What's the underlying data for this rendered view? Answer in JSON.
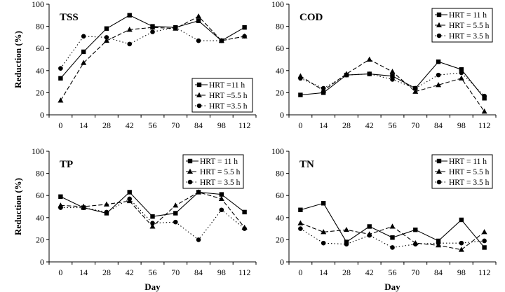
{
  "figure": {
    "x_axis_label": "Day",
    "y_axis_label": "Reduction (%)"
  },
  "chart_data": [
    {
      "type": "line",
      "title": "TSS",
      "xlabel": "",
      "ylabel": "Reduction (%)",
      "categories": [
        "0",
        "14",
        "28",
        "42",
        "56",
        "70",
        "84",
        "98",
        "112"
      ],
      "ylim": [
        0,
        100
      ],
      "yticks": [
        0,
        20,
        40,
        60,
        80,
        100
      ],
      "legend_position": "bottom-right",
      "series": [
        {
          "name": "HRT =11 h",
          "marker": "square",
          "dash": "solid",
          "values": [
            33,
            57,
            78,
            90,
            80,
            79,
            85,
            67,
            79
          ]
        },
        {
          "name": "HRT =5.5 h",
          "marker": "triangle",
          "dash": "dashed",
          "values": [
            13,
            47,
            67,
            77,
            79,
            78,
            89,
            67,
            71
          ]
        },
        {
          "name": "HRT =3.5 h",
          "marker": "circle",
          "dash": "dotted",
          "values": [
            42,
            71,
            70,
            64,
            75,
            79,
            67,
            67,
            71
          ]
        }
      ]
    },
    {
      "type": "line",
      "title": "COD",
      "xlabel": "",
      "ylabel": "",
      "categories": [
        "0",
        "14",
        "28",
        "42",
        "56",
        "70",
        "84",
        "98",
        "112"
      ],
      "ylim": [
        0,
        100
      ],
      "yticks": [
        0,
        20,
        40,
        60,
        80,
        100
      ],
      "legend_position": "top-right",
      "series": [
        {
          "name": "HRT = 11 h",
          "marker": "square",
          "dash": "solid",
          "values": [
            18,
            20,
            36,
            37,
            35,
            24,
            48,
            41,
            15
          ]
        },
        {
          "name": "HRT = 5.5 h",
          "marker": "triangle",
          "dash": "dashed",
          "values": [
            35,
            22,
            37,
            50,
            39,
            21,
            27,
            33,
            3
          ]
        },
        {
          "name": "HRT = 3.5 h",
          "marker": "circle",
          "dash": "dotted",
          "values": [
            33,
            24,
            36,
            37,
            32,
            24,
            36,
            38,
            17
          ]
        }
      ]
    },
    {
      "type": "line",
      "title": "TP",
      "xlabel": "Day",
      "ylabel": "Reduction (%)",
      "categories": [
        "0",
        "14",
        "28",
        "42",
        "56",
        "70",
        "84",
        "98",
        "112"
      ],
      "ylim": [
        0,
        100
      ],
      "yticks": [
        0,
        20,
        40,
        60,
        80,
        100
      ],
      "legend_position": "top-right",
      "series": [
        {
          "name": "HRT = 11 h",
          "marker": "square",
          "dash": "solid",
          "values": [
            59,
            49,
            44,
            63,
            41,
            44,
            63,
            61,
            45
          ]
        },
        {
          "name": "HRT = 5.5 h",
          "marker": "triangle",
          "dash": "dashed",
          "values": [
            51,
            50,
            52,
            55,
            32,
            51,
            63,
            57,
            31
          ]
        },
        {
          "name": "HRT = 3.5 h",
          "marker": "circle",
          "dash": "dotted",
          "values": [
            49,
            49,
            45,
            57,
            35,
            36,
            20,
            47,
            30
          ]
        }
      ]
    },
    {
      "type": "line",
      "title": "TN",
      "xlabel": "Day",
      "ylabel": "",
      "categories": [
        "0",
        "14",
        "28",
        "42",
        "56",
        "70",
        "84",
        "98",
        "112"
      ],
      "ylim": [
        0,
        100
      ],
      "yticks": [
        0,
        20,
        40,
        60,
        80,
        100
      ],
      "legend_position": "top-right",
      "series": [
        {
          "name": "HRT = 11 h",
          "marker": "square",
          "dash": "solid",
          "values": [
            47,
            53,
            18,
            32,
            22,
            29,
            19,
            38,
            13
          ]
        },
        {
          "name": "HRT = 5.5 h",
          "marker": "triangle",
          "dash": "dashed",
          "values": [
            35,
            27,
            29,
            25,
            32,
            17,
            15,
            11,
            27
          ]
        },
        {
          "name": "HRT = 3.5 h",
          "marker": "circle",
          "dash": "dotted",
          "values": [
            30,
            17,
            16,
            24,
            13,
            16,
            17,
            17,
            19
          ]
        }
      ]
    }
  ]
}
